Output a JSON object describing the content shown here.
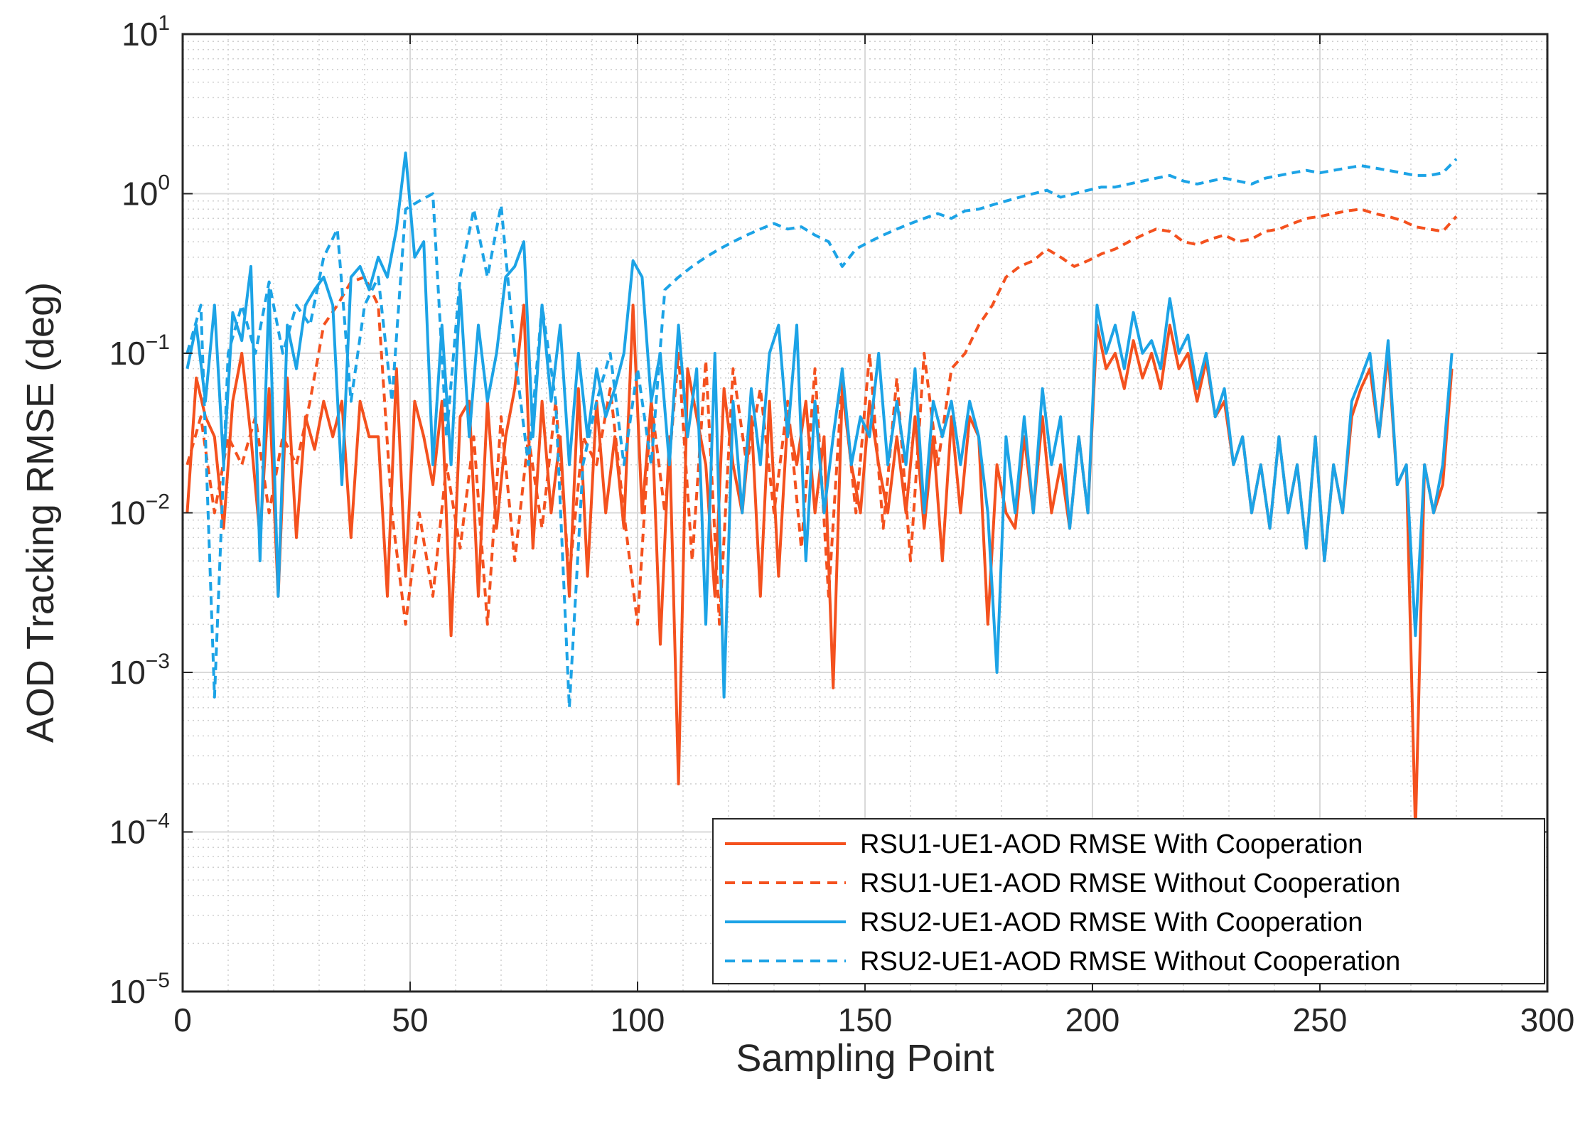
{
  "chart_data": {
    "type": "line",
    "title": "",
    "xlabel": "Sampling Point",
    "ylabel": "AOD Tracking RMSE (deg)",
    "xscale": "linear",
    "yscale": "log",
    "xlim": [
      0,
      300
    ],
    "ylim": [
      1e-05,
      10
    ],
    "xticks": [
      0,
      50,
      100,
      150,
      200,
      250,
      300
    ],
    "xtick_labels": [
      "0",
      "50",
      "100",
      "150",
      "200",
      "250",
      "300"
    ],
    "yticks": [
      1e-05,
      0.0001,
      0.001,
      0.01,
      0.1,
      1,
      10
    ],
    "ytick_labels": [
      {
        "base": "10",
        "exp": "−5"
      },
      {
        "base": "10",
        "exp": "−4"
      },
      {
        "base": "10",
        "exp": "−3"
      },
      {
        "base": "10",
        "exp": "−2"
      },
      {
        "base": "10",
        "exp": "−1"
      },
      {
        "base": "10",
        "exp": "0"
      },
      {
        "base": "10",
        "exp": "1"
      }
    ],
    "grid": true,
    "legend_position": "bottom-right",
    "series": [
      {
        "name": "RSU1-UE1-AOD RMSE With Cooperation",
        "color": "#F4511E",
        "dash": "solid",
        "x": [
          1,
          3,
          5,
          7,
          9,
          11,
          13,
          15,
          17,
          19,
          21,
          23,
          25,
          27,
          29,
          31,
          33,
          35,
          37,
          39,
          41,
          43,
          45,
          47,
          49,
          51,
          53,
          55,
          57,
          59,
          61,
          63,
          65,
          67,
          69,
          71,
          73,
          75,
          77,
          79,
          81,
          83,
          85,
          87,
          89,
          91,
          93,
          95,
          97,
          99,
          101,
          103,
          105,
          107,
          109,
          111,
          113,
          115,
          117,
          119,
          121,
          123,
          125,
          127,
          129,
          131,
          133,
          135,
          137,
          139,
          141,
          143,
          145,
          147,
          149,
          151,
          153,
          155,
          157,
          159,
          161,
          163,
          165,
          167,
          169,
          171,
          173,
          175,
          177,
          179,
          181,
          183,
          185,
          187,
          189,
          191,
          193,
          195,
          197,
          199,
          201,
          203,
          205,
          207,
          209,
          211,
          213,
          215,
          217,
          219,
          221,
          223,
          225,
          227,
          229,
          231,
          233,
          235,
          237,
          239,
          241,
          243,
          245,
          247,
          249,
          251,
          253,
          255,
          257,
          259,
          261,
          263,
          265,
          267,
          269,
          271,
          273,
          275,
          277,
          279
        ],
        "y": [
          0.01,
          0.07,
          0.04,
          0.03,
          0.008,
          0.05,
          0.1,
          0.03,
          0.007,
          0.06,
          0.003,
          0.07,
          0.007,
          0.04,
          0.025,
          0.05,
          0.03,
          0.05,
          0.007,
          0.05,
          0.03,
          0.03,
          0.003,
          0.08,
          0.004,
          0.05,
          0.03,
          0.015,
          0.05,
          0.0017,
          0.04,
          0.05,
          0.003,
          0.05,
          0.008,
          0.03,
          0.06,
          0.2,
          0.006,
          0.05,
          0.01,
          0.03,
          0.003,
          0.06,
          0.004,
          0.05,
          0.01,
          0.03,
          0.008,
          0.2,
          0.01,
          0.05,
          0.0015,
          0.03,
          0.0002,
          0.08,
          0.04,
          0.02,
          0.003,
          0.06,
          0.02,
          0.01,
          0.04,
          0.003,
          0.05,
          0.004,
          0.04,
          0.02,
          0.05,
          0.01,
          0.03,
          0.0008,
          0.06,
          0.02,
          0.01,
          0.05,
          0.02,
          0.01,
          0.03,
          0.01,
          0.04,
          0.008,
          0.03,
          0.005,
          0.04,
          0.01,
          0.04,
          0.03,
          0.002,
          0.02,
          0.01,
          0.008,
          0.03,
          0.01,
          0.04,
          0.01,
          0.02,
          0.008,
          0.03,
          0.01,
          0.15,
          0.08,
          0.1,
          0.06,
          0.12,
          0.07,
          0.1,
          0.06,
          0.15,
          0.08,
          0.1,
          0.05,
          0.09,
          0.04,
          0.05,
          0.02,
          0.03,
          0.01,
          0.02,
          0.008,
          0.03,
          0.01,
          0.02,
          0.006,
          0.03,
          0.005,
          0.02,
          0.01,
          0.04,
          0.06,
          0.08,
          0.03,
          0.1,
          0.015,
          0.02,
          0.0001,
          0.02,
          0.01,
          0.015,
          0.08
        ]
      },
      {
        "name": "RSU1-UE1-AOD RMSE Without Cooperation",
        "color": "#F4511E",
        "dash": "dashed",
        "x": [
          1,
          4,
          7,
          10,
          13,
          16,
          19,
          22,
          25,
          28,
          31,
          34,
          37,
          40,
          43,
          46,
          49,
          52,
          55,
          58,
          61,
          64,
          67,
          70,
          73,
          76,
          79,
          82,
          85,
          88,
          91,
          94,
          97,
          100,
          103,
          106,
          109,
          112,
          115,
          118,
          121,
          124,
          127,
          130,
          133,
          136,
          139,
          142,
          145,
          148,
          151,
          154,
          157,
          160,
          163,
          166,
          169,
          172,
          175,
          178,
          181,
          184,
          187,
          190,
          193,
          196,
          199,
          202,
          205,
          208,
          211,
          214,
          217,
          220,
          223,
          226,
          229,
          232,
          235,
          238,
          241,
          244,
          247,
          250,
          253,
          256,
          259,
          262,
          265,
          268,
          271,
          274,
          277,
          280
        ],
        "y": [
          0.02,
          0.04,
          0.01,
          0.03,
          0.02,
          0.04,
          0.01,
          0.03,
          0.02,
          0.05,
          0.15,
          0.2,
          0.28,
          0.3,
          0.2,
          0.01,
          0.002,
          0.01,
          0.003,
          0.02,
          0.006,
          0.03,
          0.002,
          0.04,
          0.005,
          0.03,
          0.008,
          0.05,
          0.004,
          0.03,
          0.02,
          0.06,
          0.01,
          0.002,
          0.05,
          0.01,
          0.1,
          0.005,
          0.09,
          0.002,
          0.08,
          0.02,
          0.06,
          0.01,
          0.05,
          0.006,
          0.08,
          0.003,
          0.07,
          0.01,
          0.1,
          0.008,
          0.07,
          0.005,
          0.1,
          0.02,
          0.08,
          0.1,
          0.15,
          0.2,
          0.3,
          0.35,
          0.38,
          0.45,
          0.4,
          0.35,
          0.38,
          0.42,
          0.45,
          0.5,
          0.55,
          0.6,
          0.58,
          0.5,
          0.48,
          0.52,
          0.55,
          0.5,
          0.52,
          0.58,
          0.6,
          0.65,
          0.7,
          0.72,
          0.75,
          0.78,
          0.8,
          0.75,
          0.72,
          0.68,
          0.62,
          0.6,
          0.58,
          0.72
        ]
      },
      {
        "name": "RSU2-UE1-AOD RMSE With Cooperation",
        "color": "#1CA3E6",
        "dash": "solid",
        "x": [
          1,
          3,
          5,
          7,
          9,
          11,
          13,
          15,
          17,
          19,
          21,
          23,
          25,
          27,
          29,
          31,
          33,
          35,
          37,
          39,
          41,
          43,
          45,
          47,
          49,
          51,
          53,
          55,
          57,
          59,
          61,
          63,
          65,
          67,
          69,
          71,
          73,
          75,
          77,
          79,
          81,
          83,
          85,
          87,
          89,
          91,
          93,
          95,
          97,
          99,
          101,
          103,
          105,
          107,
          109,
          111,
          113,
          115,
          117,
          119,
          121,
          123,
          125,
          127,
          129,
          131,
          133,
          135,
          137,
          139,
          141,
          143,
          145,
          147,
          149,
          151,
          153,
          155,
          157,
          159,
          161,
          163,
          165,
          167,
          169,
          171,
          173,
          175,
          177,
          179,
          181,
          183,
          185,
          187,
          189,
          191,
          193,
          195,
          197,
          199,
          201,
          203,
          205,
          207,
          209,
          211,
          213,
          215,
          217,
          219,
          221,
          223,
          225,
          227,
          229,
          231,
          233,
          235,
          237,
          239,
          241,
          243,
          245,
          247,
          249,
          251,
          253,
          255,
          257,
          259,
          261,
          263,
          265,
          267,
          269,
          271,
          273,
          275,
          277,
          279
        ],
        "y": [
          0.08,
          0.15,
          0.05,
          0.2,
          0.02,
          0.18,
          0.12,
          0.35,
          0.005,
          0.25,
          0.003,
          0.15,
          0.08,
          0.2,
          0.25,
          0.3,
          0.2,
          0.015,
          0.3,
          0.35,
          0.25,
          0.4,
          0.3,
          0.6,
          1.8,
          0.4,
          0.5,
          0.02,
          0.15,
          0.02,
          0.25,
          0.03,
          0.15,
          0.05,
          0.1,
          0.3,
          0.35,
          0.5,
          0.03,
          0.2,
          0.05,
          0.15,
          0.02,
          0.1,
          0.03,
          0.08,
          0.04,
          0.06,
          0.1,
          0.38,
          0.3,
          0.05,
          0.1,
          0.02,
          0.15,
          0.03,
          0.08,
          0.002,
          0.1,
          0.0007,
          0.05,
          0.01,
          0.06,
          0.02,
          0.1,
          0.15,
          0.03,
          0.15,
          0.005,
          0.05,
          0.01,
          0.03,
          0.08,
          0.02,
          0.04,
          0.03,
          0.1,
          0.02,
          0.05,
          0.02,
          0.08,
          0.01,
          0.05,
          0.03,
          0.05,
          0.02,
          0.05,
          0.03,
          0.01,
          0.001,
          0.03,
          0.01,
          0.04,
          0.01,
          0.06,
          0.02,
          0.04,
          0.008,
          0.03,
          0.01,
          0.2,
          0.1,
          0.15,
          0.08,
          0.18,
          0.1,
          0.12,
          0.08,
          0.22,
          0.1,
          0.13,
          0.06,
          0.1,
          0.04,
          0.06,
          0.02,
          0.03,
          0.01,
          0.02,
          0.008,
          0.03,
          0.01,
          0.02,
          0.006,
          0.03,
          0.005,
          0.02,
          0.01,
          0.05,
          0.07,
          0.1,
          0.03,
          0.12,
          0.015,
          0.02,
          0.0017,
          0.02,
          0.01,
          0.02,
          0.1
        ]
      },
      {
        "name": "RSU2-UE1-AOD RMSE Without Cooperation",
        "color": "#1CA3E6",
        "dash": "dashed",
        "x": [
          1,
          4,
          7,
          10,
          13,
          16,
          19,
          22,
          25,
          28,
          31,
          34,
          37,
          40,
          43,
          46,
          49,
          52,
          55,
          58,
          61,
          64,
          67,
          70,
          73,
          76,
          79,
          82,
          85,
          88,
          91,
          94,
          97,
          100,
          103,
          106,
          109,
          112,
          115,
          118,
          121,
          124,
          127,
          130,
          133,
          136,
          139,
          142,
          145,
          148,
          151,
          154,
          157,
          160,
          163,
          166,
          169,
          172,
          175,
          178,
          181,
          184,
          187,
          190,
          193,
          196,
          199,
          202,
          205,
          208,
          211,
          214,
          217,
          220,
          223,
          226,
          229,
          232,
          235,
          238,
          241,
          244,
          247,
          250,
          253,
          256,
          259,
          262,
          265,
          268,
          271,
          274,
          277,
          280
        ],
        "y": [
          0.1,
          0.2,
          0.0007,
          0.1,
          0.2,
          0.1,
          0.28,
          0.1,
          0.2,
          0.15,
          0.4,
          0.6,
          0.05,
          0.2,
          0.3,
          0.05,
          0.8,
          0.9,
          1.0,
          0.03,
          0.3,
          0.8,
          0.3,
          0.85,
          0.1,
          0.02,
          0.2,
          0.05,
          0.0006,
          0.02,
          0.05,
          0.1,
          0.02,
          0.08,
          0.02,
          0.25,
          0.3,
          0.35,
          0.4,
          0.45,
          0.5,
          0.55,
          0.6,
          0.65,
          0.6,
          0.62,
          0.55,
          0.5,
          0.35,
          0.45,
          0.5,
          0.55,
          0.6,
          0.65,
          0.7,
          0.75,
          0.7,
          0.78,
          0.8,
          0.85,
          0.9,
          0.95,
          1.0,
          1.05,
          0.95,
          1.0,
          1.05,
          1.1,
          1.1,
          1.15,
          1.2,
          1.25,
          1.3,
          1.2,
          1.15,
          1.2,
          1.25,
          1.2,
          1.15,
          1.25,
          1.3,
          1.35,
          1.4,
          1.35,
          1.4,
          1.45,
          1.5,
          1.45,
          1.4,
          1.35,
          1.3,
          1.3,
          1.35,
          1.65
        ]
      }
    ]
  }
}
